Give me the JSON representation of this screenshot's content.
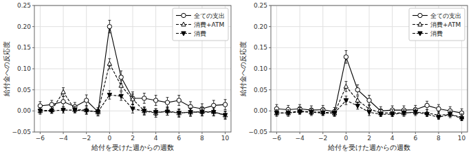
{
  "chart_data": [
    {
      "type": "line",
      "xlabel": "給付を受けた週からの週数",
      "ylabel": "給付金への反応度",
      "x": [
        -6,
        -5,
        -4,
        -3,
        -2,
        -1,
        0,
        1,
        2,
        3,
        4,
        5,
        6,
        7,
        8,
        9,
        10
      ],
      "series": [
        {
          "name": "全ての支出",
          "color": "#000000",
          "marker": "open-circle",
          "line_style": "solid",
          "values": [
            0.012,
            0.015,
            0.022,
            0.01,
            0.025,
            -0.002,
            0.2,
            0.08,
            0.03,
            0.03,
            0.025,
            0.02,
            0.025,
            0.01,
            0.005,
            0.013,
            0.015
          ],
          "errors": [
            0.01,
            0.01,
            0.012,
            0.01,
            0.013,
            0.01,
            0.015,
            0.015,
            0.015,
            0.012,
            0.012,
            0.012,
            0.012,
            0.012,
            0.012,
            0.012,
            0.012
          ]
        },
        {
          "name": "消費+ATM",
          "color": "#000000",
          "marker": "open-triangle-up",
          "line_style": "dashed",
          "values": [
            0.0,
            0.002,
            0.045,
            0.003,
            0.002,
            -0.003,
            0.112,
            0.06,
            0.028,
            0.0,
            -0.005,
            0.0,
            -0.005,
            -0.003,
            -0.002,
            -0.002,
            -0.01
          ],
          "errors": [
            0.008,
            0.008,
            0.01,
            0.008,
            0.01,
            0.008,
            0.012,
            0.012,
            0.012,
            0.01,
            0.01,
            0.01,
            0.01,
            0.01,
            0.01,
            0.01,
            0.01
          ]
        },
        {
          "name": "消費",
          "color": "#000000",
          "marker": "triangle-down",
          "line_style": "dashed",
          "values": [
            0.0,
            0.0,
            0.002,
            0.002,
            0.0,
            -0.002,
            0.038,
            0.035,
            0.005,
            0.0,
            -0.003,
            -0.002,
            -0.005,
            -0.003,
            -0.003,
            -0.003,
            -0.01
          ],
          "errors": [
            0.005,
            0.005,
            0.007,
            0.005,
            0.007,
            0.005,
            0.01,
            0.01,
            0.01,
            0.008,
            0.008,
            0.008,
            0.008,
            0.008,
            0.008,
            0.008,
            0.008
          ]
        }
      ],
      "xlim": [
        -6.5,
        10.5
      ],
      "xticks": [
        {
          "value": -6,
          "label": "−6"
        },
        {
          "value": -4,
          "label": "−4"
        },
        {
          "value": -2,
          "label": "−2"
        },
        0,
        2,
        4,
        6,
        8,
        10
      ],
      "ylim": [
        -0.05,
        0.25
      ],
      "yticks": [
        {
          "value": -0.05,
          "label": "−0.05"
        },
        {
          "value": 0,
          "label": "0.00"
        },
        0.05,
        {
          "value": 0.1,
          "label": "0.10"
        },
        0.15,
        {
          "value": 0.2,
          "label": "0.20"
        },
        0.25
      ],
      "grid": true,
      "legend": "upper right"
    },
    {
      "type": "line",
      "xlabel": "給付を受けた週からの週数",
      "ylabel": "給付金への反応度",
      "x": [
        -6,
        -5,
        -4,
        -3,
        -2,
        -1,
        0,
        1,
        2,
        3,
        4,
        5,
        6,
        7,
        8,
        9,
        10
      ],
      "series": [
        {
          "name": "全ての支出",
          "color": "#000000",
          "marker": "open-circle",
          "line_style": "solid",
          "values": [
            0.005,
            0.003,
            0.005,
            0.002,
            0.003,
            -0.002,
            0.128,
            0.05,
            0.025,
            0.0,
            0.002,
            0.002,
            0.003,
            0.013,
            0.005,
            0.0,
            -0.005
          ],
          "errors": [
            0.01,
            0.01,
            0.01,
            0.01,
            0.01,
            0.01,
            0.015,
            0.012,
            0.012,
            0.01,
            0.01,
            0.01,
            0.01,
            0.01,
            0.01,
            0.01,
            0.01
          ]
        },
        {
          "name": "消費+ATM",
          "color": "#000000",
          "marker": "open-triangle-up",
          "line_style": "dashed",
          "values": [
            -0.005,
            -0.005,
            0.0,
            -0.003,
            -0.003,
            -0.005,
            0.058,
            0.025,
            0.005,
            -0.005,
            -0.005,
            -0.005,
            -0.003,
            -0.005,
            -0.01,
            -0.008,
            -0.015
          ],
          "errors": [
            0.008,
            0.008,
            0.008,
            0.008,
            0.008,
            0.008,
            0.012,
            0.01,
            0.01,
            0.008,
            0.008,
            0.008,
            0.008,
            0.008,
            0.008,
            0.008,
            0.008
          ]
        },
        {
          "name": "消費",
          "color": "#000000",
          "marker": "triangle-down",
          "line_style": "dashed",
          "values": [
            -0.005,
            -0.005,
            -0.002,
            -0.003,
            -0.005,
            -0.005,
            0.025,
            0.012,
            -0.003,
            -0.008,
            -0.008,
            -0.005,
            -0.003,
            -0.008,
            -0.015,
            -0.008,
            -0.018
          ],
          "errors": [
            0.005,
            0.005,
            0.005,
            0.005,
            0.005,
            0.005,
            0.01,
            0.008,
            0.008,
            0.005,
            0.005,
            0.005,
            0.005,
            0.005,
            0.005,
            0.005,
            0.005
          ]
        }
      ],
      "xlim": [
        -6.5,
        10.5
      ],
      "xticks": [
        {
          "value": -6,
          "label": "−6"
        },
        {
          "value": -4,
          "label": "−4"
        },
        {
          "value": -2,
          "label": "−2"
        },
        0,
        2,
        4,
        6,
        8,
        10
      ],
      "ylim": [
        -0.05,
        0.25
      ],
      "yticks": [
        {
          "value": -0.05,
          "label": "−0.05"
        },
        {
          "value": 0,
          "label": "0.00"
        },
        0.05,
        {
          "value": 0.1,
          "label": "0.10"
        },
        0.15,
        {
          "value": 0.2,
          "label": "0.20"
        },
        0.25
      ],
      "grid": true,
      "legend": "upper right"
    }
  ]
}
